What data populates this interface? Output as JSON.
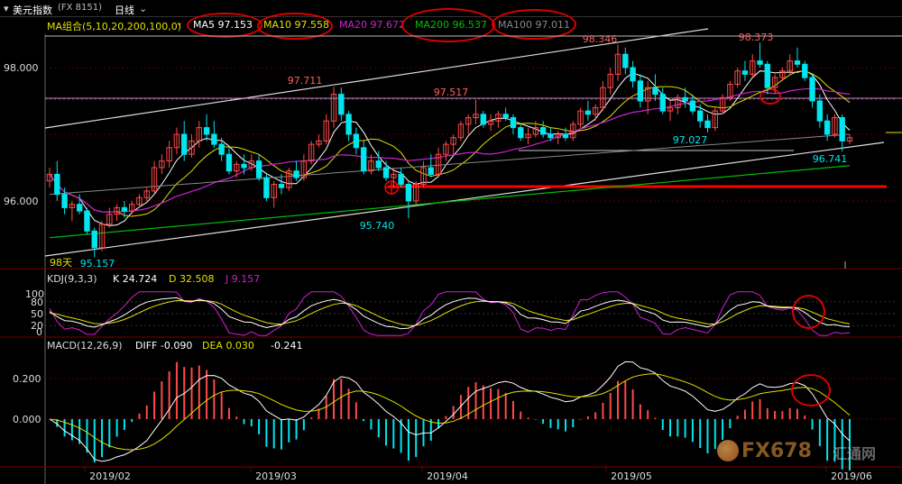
{
  "window": {
    "symbol_name": "美元指数",
    "symbol_code": "(FX 8151)",
    "period": "日线"
  },
  "ma_legend": {
    "group": "MA组合(5,10,20,200,100,0)",
    "ma5": "MA5 97.153",
    "ma10": "MA10 97.558",
    "ma20": "MA20 97.672",
    "ma200": "MA200 96.537",
    "ma100": "MA100 97.011"
  },
  "kdj_legend": {
    "title": "KDJ(9,3,3)",
    "k": "K 24.724",
    "d": "D 32.508",
    "j": "J 9.157"
  },
  "macd_legend": {
    "title": "MACD(12,26,9)",
    "diff": "DIFF -0.090",
    "dea": "DEA 0.030",
    "macd": "-0.241"
  },
  "price_labels": [
    "98.000",
    "96.000"
  ],
  "kdj_labels": [
    "100",
    "80",
    "50",
    "20",
    "0"
  ],
  "macd_labels": [
    "0.200",
    "0.000"
  ],
  "x_labels": [
    "2019/02",
    "2019/03",
    "2019/04",
    "2019/05",
    "2019/06"
  ],
  "annotations": {
    "low_start": "95.157",
    "days_label": "98天",
    "h1": "97.711",
    "h2": "97.517",
    "h3": "98.346",
    "h4": "98.373",
    "l1": "95.740",
    "l2": "97.027",
    "l3": "96.741"
  },
  "watermark": "FX678",
  "watermark_cn": "汇通网",
  "colors": {
    "up": "#ff4a4a",
    "down": "#00e5ee",
    "ma5": "#ffffff",
    "ma10": "#e0e000",
    "ma20": "#d020d0",
    "ma200": "#00c000",
    "ma100": "#888888",
    "support": "#ff0000"
  },
  "chart_data": {
    "type": "candlestick",
    "title": "美元指数 (FX 8151) 日线",
    "x_ticks": [
      "2019/02",
      "2019/03",
      "2019/04",
      "2019/05",
      "2019/06"
    ],
    "ylim": [
      95.0,
      98.5
    ],
    "candles": [
      [
        96.3,
        96.5,
        96.2,
        96.4
      ],
      [
        96.4,
        96.6,
        96.0,
        96.1
      ],
      [
        96.1,
        96.2,
        95.8,
        95.9
      ],
      [
        95.9,
        96.0,
        95.7,
        95.95
      ],
      [
        95.95,
        96.1,
        95.8,
        95.85
      ],
      [
        95.85,
        95.9,
        95.5,
        95.55
      ],
      [
        95.55,
        95.6,
        95.157,
        95.3
      ],
      [
        95.3,
        95.7,
        95.25,
        95.65
      ],
      [
        95.65,
        95.9,
        95.6,
        95.8
      ],
      [
        95.8,
        95.95,
        95.7,
        95.9
      ],
      [
        95.9,
        96.0,
        95.75,
        95.85
      ],
      [
        95.85,
        96.0,
        95.8,
        95.95
      ],
      [
        95.95,
        96.1,
        95.9,
        96.05
      ],
      [
        96.05,
        96.2,
        96.0,
        96.15
      ],
      [
        96.15,
        96.6,
        96.1,
        96.5
      ],
      [
        96.5,
        96.7,
        96.4,
        96.6
      ],
      [
        96.6,
        96.9,
        96.5,
        96.8
      ],
      [
        96.8,
        97.1,
        96.7,
        97.0
      ],
      [
        97.0,
        97.2,
        96.6,
        96.7
      ],
      [
        96.7,
        97.0,
        96.65,
        96.9
      ],
      [
        96.9,
        97.2,
        96.8,
        97.1
      ],
      [
        97.1,
        97.3,
        96.9,
        97.0
      ],
      [
        97.0,
        97.2,
        96.8,
        96.85
      ],
      [
        96.85,
        96.95,
        96.6,
        96.7
      ],
      [
        96.7,
        96.8,
        96.4,
        96.45
      ],
      [
        96.45,
        96.6,
        96.35,
        96.55
      ],
      [
        96.55,
        96.7,
        96.4,
        96.5
      ],
      [
        96.5,
        96.7,
        96.45,
        96.6
      ],
      [
        96.6,
        96.7,
        96.3,
        96.35
      ],
      [
        96.35,
        96.4,
        96.0,
        96.05
      ],
      [
        96.05,
        96.3,
        95.9,
        96.25
      ],
      [
        96.25,
        96.4,
        96.1,
        96.2
      ],
      [
        96.2,
        96.5,
        96.15,
        96.45
      ],
      [
        96.45,
        96.6,
        96.3,
        96.35
      ],
      [
        96.35,
        96.7,
        96.3,
        96.6
      ],
      [
        96.6,
        96.9,
        96.55,
        96.85
      ],
      [
        96.85,
        97.0,
        96.8,
        96.9
      ],
      [
        96.9,
        97.3,
        96.85,
        97.2
      ],
      [
        97.2,
        97.711,
        97.1,
        97.6
      ],
      [
        97.6,
        97.7,
        97.2,
        97.3
      ],
      [
        97.3,
        97.35,
        96.9,
        97.0
      ],
      [
        97.0,
        97.1,
        96.7,
        96.8
      ],
      [
        96.8,
        96.9,
        96.4,
        96.45
      ],
      [
        96.45,
        96.7,
        96.4,
        96.6
      ],
      [
        96.6,
        96.75,
        96.45,
        96.5
      ],
      [
        96.5,
        96.6,
        96.3,
        96.35
      ],
      [
        96.35,
        96.5,
        96.2,
        96.4
      ],
      [
        96.4,
        96.5,
        96.2,
        96.25
      ],
      [
        96.25,
        96.3,
        95.74,
        96.0
      ],
      [
        96.0,
        96.3,
        95.95,
        96.25
      ],
      [
        96.25,
        96.6,
        96.2,
        96.5
      ],
      [
        96.5,
        96.7,
        96.35,
        96.4
      ],
      [
        96.4,
        96.8,
        96.35,
        96.7
      ],
      [
        96.7,
        96.9,
        96.6,
        96.85
      ],
      [
        96.85,
        97.0,
        96.7,
        96.95
      ],
      [
        96.95,
        97.2,
        96.9,
        97.15
      ],
      [
        97.15,
        97.3,
        97.0,
        97.25
      ],
      [
        97.25,
        97.517,
        97.15,
        97.3
      ],
      [
        97.3,
        97.35,
        97.1,
        97.15
      ],
      [
        97.15,
        97.3,
        97.05,
        97.2
      ],
      [
        97.2,
        97.35,
        97.1,
        97.3
      ],
      [
        97.3,
        97.4,
        97.2,
        97.25
      ],
      [
        97.25,
        97.3,
        97.0,
        97.1
      ],
      [
        97.1,
        97.15,
        96.9,
        96.95
      ],
      [
        96.95,
        97.1,
        96.85,
        97.0
      ],
      [
        97.0,
        97.2,
        96.95,
        97.1
      ],
      [
        97.1,
        97.2,
        96.95,
        97.0
      ],
      [
        97.0,
        97.1,
        96.9,
        96.95
      ],
      [
        96.95,
        97.05,
        96.85,
        97.0
      ],
      [
        97.0,
        97.1,
        96.9,
        96.95
      ],
      [
        96.95,
        97.2,
        96.9,
        97.15
      ],
      [
        97.15,
        97.4,
        97.1,
        97.35
      ],
      [
        97.35,
        97.5,
        97.2,
        97.3
      ],
      [
        97.3,
        97.45,
        97.2,
        97.4
      ],
      [
        97.4,
        97.8,
        97.35,
        97.7
      ],
      [
        97.7,
        98.0,
        97.6,
        97.9
      ],
      [
        97.9,
        98.346,
        97.8,
        98.2
      ],
      [
        98.2,
        98.3,
        97.9,
        98.0
      ],
      [
        98.0,
        98.1,
        97.7,
        97.8
      ],
      [
        97.8,
        97.9,
        97.4,
        97.5
      ],
      [
        97.5,
        97.8,
        97.3,
        97.7
      ],
      [
        97.7,
        97.9,
        97.5,
        97.6
      ],
      [
        97.6,
        97.7,
        97.3,
        97.35
      ],
      [
        97.35,
        97.5,
        97.2,
        97.4
      ],
      [
        97.4,
        97.6,
        97.3,
        97.55
      ],
      [
        97.55,
        97.7,
        97.4,
        97.5
      ],
      [
        97.5,
        97.6,
        97.3,
        97.35
      ],
      [
        97.35,
        97.45,
        97.1,
        97.2
      ],
      [
        97.2,
        97.3,
        97.027,
        97.1
      ],
      [
        97.1,
        97.4,
        97.05,
        97.35
      ],
      [
        97.35,
        97.6,
        97.3,
        97.55
      ],
      [
        97.55,
        97.8,
        97.5,
        97.75
      ],
      [
        97.75,
        98.0,
        97.7,
        97.95
      ],
      [
        97.95,
        98.1,
        97.8,
        97.9
      ],
      [
        97.9,
        98.2,
        97.85,
        98.1
      ],
      [
        98.1,
        98.373,
        98.0,
        98.05
      ],
      [
        98.05,
        98.1,
        97.6,
        97.7
      ],
      [
        97.7,
        97.9,
        97.6,
        97.85
      ],
      [
        97.85,
        98.0,
        97.8,
        97.95
      ],
      [
        97.95,
        98.2,
        97.9,
        98.1
      ],
      [
        98.1,
        98.3,
        98.0,
        98.05
      ],
      [
        98.05,
        98.1,
        97.8,
        97.85
      ],
      [
        97.85,
        97.9,
        97.4,
        97.5
      ],
      [
        97.5,
        97.6,
        97.1,
        97.2
      ],
      [
        97.2,
        97.3,
        96.9,
        97.0
      ],
      [
        97.0,
        97.3,
        96.95,
        97.25
      ],
      [
        97.25,
        97.3,
        96.741,
        96.9
      ],
      [
        96.9,
        97.0,
        96.85,
        96.95
      ]
    ]
  }
}
